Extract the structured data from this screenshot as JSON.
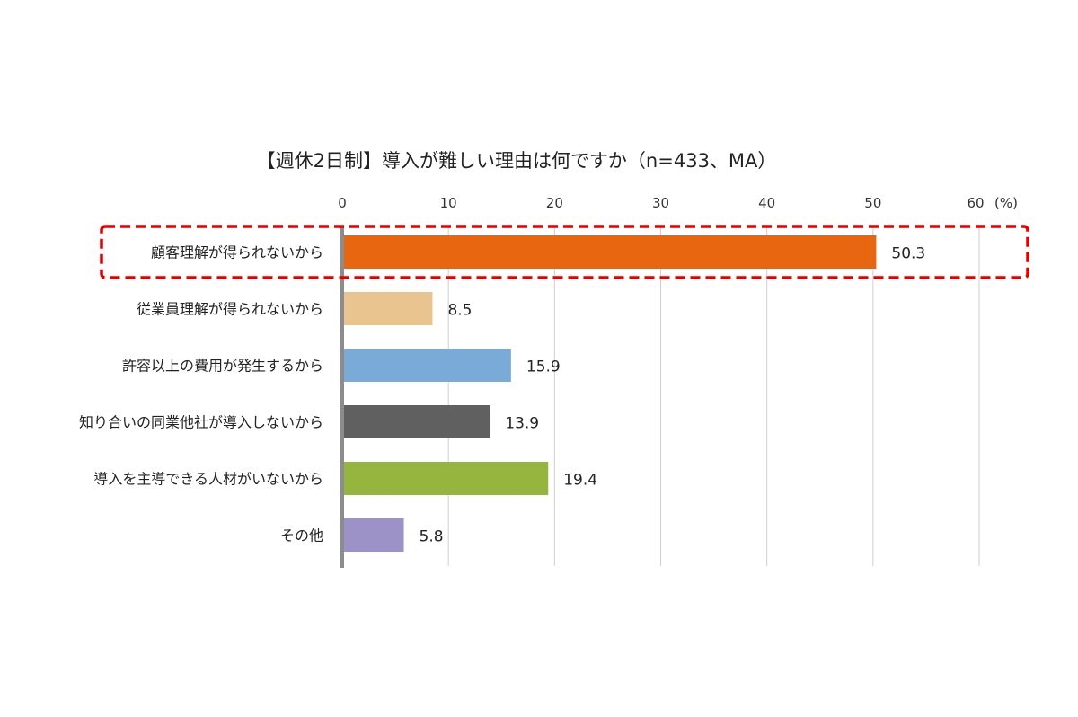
{
  "chart_data": {
    "type": "bar",
    "orientation": "horizontal",
    "title": "【週休2日制】導入が難しい理由は何ですか（n=433、MA）",
    "unit_label": "(%)",
    "xlim": [
      0,
      60
    ],
    "ticks": [
      "0",
      "10",
      "20",
      "30",
      "40",
      "50",
      "60"
    ],
    "grid": true,
    "categories": [
      "顧客理解が得られないから",
      "従業員理解が得られないから",
      "許容以上の費用が発生するから",
      "知り合いの同業他社が導入しないから",
      "導入を主導できる人材がいないから",
      "その他"
    ],
    "values": [
      50.3,
      8.5,
      15.9,
      13.9,
      19.4,
      5.8
    ],
    "value_labels": [
      "50.3",
      "8.5",
      "15.9",
      "13.9",
      "19.4",
      "5.8"
    ],
    "colors": [
      "#E8660F",
      "#E9C48E",
      "#7AABD8",
      "#606060",
      "#95B53E",
      "#9D92C8"
    ],
    "highlight_index": 0,
    "highlight_color": "#E00000"
  }
}
